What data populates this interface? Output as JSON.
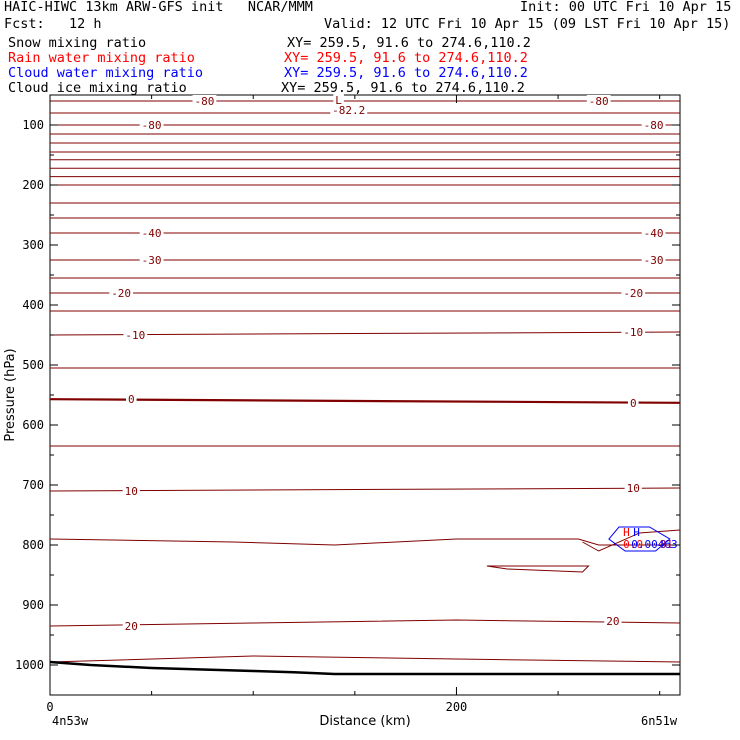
{
  "header": {
    "title": "HAIC-HIWC 13km ARW-GFS init   NCAR/MMM",
    "init": "Init: 00 UTC Fri 10 Apr 15",
    "fcst": "Fcst:   12 h",
    "valid": "Valid: 12 UTC Fri 10 Apr 15 (09 LST Fri 10 Apr 15)",
    "fields": [
      {
        "name": "Snow mixing ratio",
        "xy": "XY= 259.5, 91.6 to 274.6,110.2",
        "color": "#000000"
      },
      {
        "name": "Rain water mixing ratio",
        "xy": "XY= 259.5, 91.6 to 274.6,110.2",
        "color": "#ff0000"
      },
      {
        "name": "Cloud water mixing ratio",
        "xy": "XY= 259.5, 91.6 to 274.6,110.2",
        "color": "#0000ff"
      },
      {
        "name": "Cloud ice mixing ratio",
        "xy": "XY= 259.5, 91.6 to 274.6,110.2",
        "color": "#000000"
      }
    ]
  },
  "chart_data": {
    "type": "line",
    "xlabel": "Distance (km)",
    "ylabel": "Pressure (hPa)",
    "xlim": [
      0,
      310
    ],
    "ylim": [
      1050,
      50
    ],
    "xticks": [
      0,
      200
    ],
    "yticks": [
      100,
      200,
      300,
      400,
      500,
      600,
      700,
      800,
      900,
      1000
    ],
    "endpoints": {
      "left": "4n53w",
      "right": "6n51w"
    },
    "contour_color": "#800000",
    "contours": [
      {
        "value": "-80",
        "points": [
          [
            0,
            60
          ],
          [
            310,
            60
          ]
        ]
      },
      {
        "value": "",
        "points": [
          [
            0,
            80
          ],
          [
            310,
            80
          ]
        ]
      },
      {
        "value": "-80",
        "points": [
          [
            0,
            100
          ],
          [
            310,
            100
          ]
        ]
      },
      {
        "value": "",
        "points": [
          [
            0,
            115
          ],
          [
            310,
            115
          ]
        ]
      },
      {
        "value": "",
        "points": [
          [
            0,
            130
          ],
          [
            310,
            130
          ]
        ]
      },
      {
        "value": "",
        "points": [
          [
            0,
            145
          ],
          [
            310,
            145
          ]
        ]
      },
      {
        "value": "",
        "points": [
          [
            0,
            158
          ],
          [
            310,
            158
          ]
        ]
      },
      {
        "value": "",
        "points": [
          [
            0,
            172
          ],
          [
            310,
            172
          ]
        ]
      },
      {
        "value": "",
        "points": [
          [
            0,
            186
          ],
          [
            310,
            186
          ]
        ]
      },
      {
        "value": "",
        "points": [
          [
            0,
            200
          ],
          [
            310,
            200
          ]
        ]
      },
      {
        "value": "",
        "points": [
          [
            0,
            230
          ],
          [
            310,
            230
          ]
        ]
      },
      {
        "value": "",
        "points": [
          [
            0,
            255
          ],
          [
            310,
            255
          ]
        ]
      },
      {
        "value": "-40",
        "points": [
          [
            0,
            280
          ],
          [
            310,
            280
          ]
        ]
      },
      {
        "value": "-30",
        "points": [
          [
            0,
            325
          ],
          [
            310,
            325
          ]
        ]
      },
      {
        "value": "",
        "points": [
          [
            0,
            355
          ],
          [
            310,
            355
          ]
        ]
      },
      {
        "value": "-20",
        "points": [
          [
            0,
            380
          ],
          [
            310,
            380
          ]
        ]
      },
      {
        "value": "",
        "points": [
          [
            0,
            410
          ],
          [
            310,
            410
          ]
        ]
      },
      {
        "value": "-10",
        "points": [
          [
            0,
            450
          ],
          [
            310,
            445
          ]
        ]
      },
      {
        "value": "",
        "points": [
          [
            0,
            505
          ],
          [
            310,
            505
          ]
        ]
      },
      {
        "value": "0",
        "points": [
          [
            0,
            557
          ],
          [
            310,
            563
          ]
        ],
        "bold": true
      },
      {
        "value": "",
        "points": [
          [
            0,
            635
          ],
          [
            310,
            635
          ]
        ]
      },
      {
        "value": "10",
        "points": [
          [
            0,
            710
          ],
          [
            310,
            705
          ]
        ]
      },
      {
        "value": "",
        "points": [
          [
            0,
            790
          ],
          [
            90,
            795
          ],
          [
            140,
            800
          ],
          [
            200,
            790
          ],
          [
            260,
            790
          ],
          [
            270,
            800
          ],
          [
            310,
            800
          ]
        ]
      },
      {
        "value": "20",
        "points": [
          [
            0,
            935
          ],
          [
            100,
            930
          ],
          [
            200,
            925
          ],
          [
            310,
            930
          ]
        ]
      },
      {
        "value": "",
        "points": [
          [
            0,
            995
          ],
          [
            100,
            985
          ],
          [
            200,
            990
          ],
          [
            310,
            995
          ]
        ]
      }
    ],
    "pocket_contour": [
      [
        215,
        835
      ],
      [
        265,
        835
      ],
      [
        262,
        845
      ],
      [
        225,
        840
      ]
    ],
    "upper_notch": [
      [
        262,
        795
      ],
      [
        270,
        810
      ],
      [
        290,
        780
      ],
      [
        310,
        775
      ]
    ],
    "labels": [
      {
        "text": "-80",
        "x": 76,
        "y": 60
      },
      {
        "text": "-80",
        "x": 270,
        "y": 60
      },
      {
        "text": "-80",
        "x": 50,
        "y": 100
      },
      {
        "text": "-80",
        "x": 297,
        "y": 100
      },
      {
        "text": "-82.2",
        "x": 147,
        "y": 75
      },
      {
        "text": "L",
        "x": 142,
        "y": 58
      },
      {
        "text": "-40",
        "x": 50,
        "y": 280
      },
      {
        "text": "-40",
        "x": 297,
        "y": 280
      },
      {
        "text": "-30",
        "x": 50,
        "y": 325
      },
      {
        "text": "-30",
        "x": 297,
        "y": 325
      },
      {
        "text": "-20",
        "x": 35,
        "y": 380
      },
      {
        "text": "-20",
        "x": 287,
        "y": 380
      },
      {
        "text": "-10",
        "x": 42,
        "y": 450
      },
      {
        "text": "-10",
        "x": 287,
        "y": 445
      },
      {
        "text": "0",
        "x": 40,
        "y": 557
      },
      {
        "text": "0",
        "x": 287,
        "y": 563
      },
      {
        "text": "10",
        "x": 40,
        "y": 710
      },
      {
        "text": "10",
        "x": 287,
        "y": 705
      },
      {
        "text": "20",
        "x": 40,
        "y": 935
      },
      {
        "text": "20",
        "x": 277,
        "y": 927
      }
    ],
    "cloud_water_contour": [
      [
        280,
        770
      ],
      [
        295,
        770
      ],
      [
        305,
        790
      ],
      [
        298,
        810
      ],
      [
        283,
        810
      ],
      [
        275,
        790
      ]
    ],
    "maxima": [
      {
        "text": "H",
        "x": 282,
        "y": 785,
        "color": "#ff0000"
      },
      {
        "text": "H",
        "x": 287,
        "y": 785,
        "color": "#0000ff"
      },
      {
        "text": "0.0",
        "x": 282,
        "y": 805,
        "color": "#ff0000"
      },
      {
        "text": "0.00463",
        "x": 286,
        "y": 805,
        "color": "#0000ff"
      },
      {
        "text": "81",
        "x": 300,
        "y": 805,
        "color": "#800080"
      }
    ],
    "terrain": [
      [
        0,
        995
      ],
      [
        20,
        1000
      ],
      [
        50,
        1005
      ],
      [
        100,
        1010
      ],
      [
        120,
        1012
      ],
      [
        140,
        1015
      ],
      [
        200,
        1015
      ],
      [
        260,
        1015
      ],
      [
        310,
        1015
      ]
    ]
  }
}
